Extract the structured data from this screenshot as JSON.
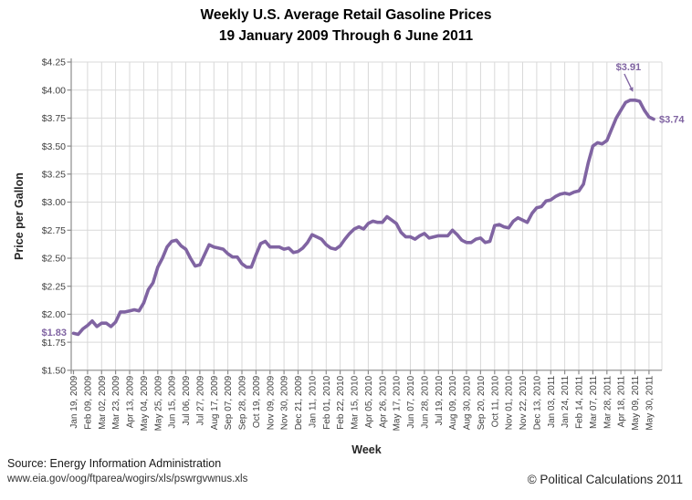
{
  "chart_data": {
    "type": "line",
    "title": "Weekly U.S. Average Retail Gasoline Prices",
    "subtitle": "19 January 2009 Through 6 June 2011",
    "xlabel": "Week",
    "ylabel": "Price per Gallon",
    "ylim": [
      1.5,
      4.25
    ],
    "ytick_step": 0.25,
    "ytick_labels": [
      "$4.25",
      "$4.00",
      "$3.75",
      "$3.50",
      "$3.25",
      "$3.00",
      "$2.75",
      "$2.50",
      "$2.25",
      "$2.00",
      "$1.75",
      "$1.50"
    ],
    "x_interval": "weekly",
    "x_label_every_n_weeks": 3,
    "x_tick_labels": [
      "Jan 19, 2009",
      "Feb 09, 2009",
      "Mar 02, 2009",
      "Mar 23, 2009",
      "Apr 13, 2009",
      "May 04, 2009",
      "May 25, 2009",
      "Jun 15, 2009",
      "Jul 06, 2009",
      "Jul 27, 2009",
      "Aug 17, 2009",
      "Sep 07, 2009",
      "Sep 28, 2009",
      "Oct 19, 2009",
      "Nov 09, 2009",
      "Nov 30, 2009",
      "Dec 21, 2009",
      "Jan 11, 2010",
      "Feb 01, 2010",
      "Feb 22, 2010",
      "Mar 15, 2010",
      "Apr 05, 2010",
      "Apr 26, 2010",
      "May 17, 2010",
      "Jun 07, 2010",
      "Jun 28, 2010",
      "Jul 19, 2010",
      "Aug 09, 2010",
      "Aug 30, 2010",
      "Sep 20, 2010",
      "Oct 11, 2010",
      "Nov 01, 2010",
      "Nov 22, 2010",
      "Dec 13, 2010",
      "Jan 03, 2011",
      "Jan 24, 2011",
      "Feb 14, 2011",
      "Mar 07, 2011",
      "Mar 28, 2011",
      "Apr 18, 2011",
      "May 09, 2011",
      "May 30, 2011"
    ],
    "grid": true,
    "legend": "none",
    "line_color": "#8064A2",
    "gridline_color": "#D9D9D9",
    "axis_color": "#8C8C8C",
    "tick_text_color": "#404040",
    "annotations": [
      {
        "text": "$1.83",
        "position": "start",
        "arrow": false
      },
      {
        "text": "$3.91",
        "position": "peak",
        "arrow": true
      },
      {
        "text": "$3.74",
        "position": "end",
        "arrow": false
      }
    ],
    "series": [
      {
        "name": "Weekly U.S. Average Retail Gasoline Price",
        "first_week": "Jan 19, 2009",
        "last_week": "Jun 06, 2011",
        "values": [
          1.83,
          1.82,
          1.87,
          1.9,
          1.94,
          1.89,
          1.92,
          1.92,
          1.89,
          1.93,
          2.02,
          2.02,
          2.03,
          2.04,
          2.03,
          2.1,
          2.22,
          2.28,
          2.42,
          2.5,
          2.6,
          2.65,
          2.66,
          2.61,
          2.58,
          2.5,
          2.43,
          2.44,
          2.53,
          2.62,
          2.6,
          2.59,
          2.58,
          2.54,
          2.51,
          2.51,
          2.45,
          2.42,
          2.42,
          2.53,
          2.63,
          2.65,
          2.6,
          2.6,
          2.6,
          2.58,
          2.59,
          2.55,
          2.56,
          2.59,
          2.64,
          2.71,
          2.69,
          2.67,
          2.62,
          2.59,
          2.58,
          2.61,
          2.67,
          2.72,
          2.76,
          2.78,
          2.76,
          2.81,
          2.83,
          2.82,
          2.82,
          2.87,
          2.84,
          2.81,
          2.73,
          2.69,
          2.69,
          2.67,
          2.7,
          2.72,
          2.68,
          2.69,
          2.7,
          2.7,
          2.7,
          2.75,
          2.71,
          2.66,
          2.64,
          2.64,
          2.67,
          2.68,
          2.64,
          2.65,
          2.79,
          2.8,
          2.78,
          2.77,
          2.83,
          2.86,
          2.84,
          2.82,
          2.9,
          2.95,
          2.96,
          3.01,
          3.02,
          3.05,
          3.07,
          3.08,
          3.07,
          3.09,
          3.1,
          3.16,
          3.35,
          3.5,
          3.53,
          3.52,
          3.55,
          3.65,
          3.75,
          3.82,
          3.89,
          3.91,
          3.91,
          3.9,
          3.82,
          3.76,
          3.74
        ]
      }
    ]
  },
  "footer": {
    "source_line1": "Source: Energy Information Administration",
    "source_line2": "www.eia.gov/oog/ftparea/wogirs/xls/pswrgvwnus.xls",
    "copyright": "© Political Calculations 2011"
  }
}
